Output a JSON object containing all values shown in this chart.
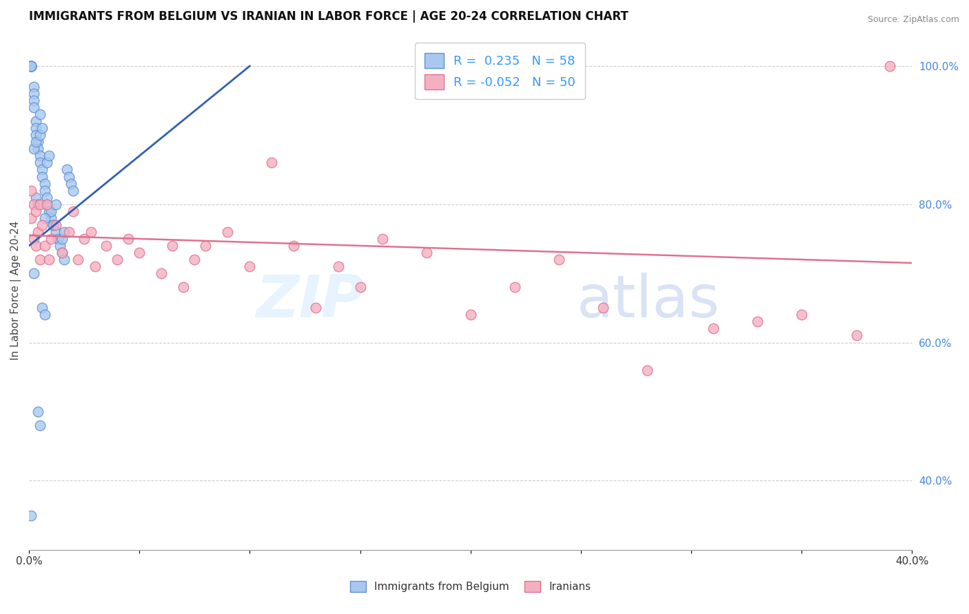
{
  "title": "IMMIGRANTS FROM BELGIUM VS IRANIAN IN LABOR FORCE | AGE 20-24 CORRELATION CHART",
  "source": "Source: ZipAtlas.com",
  "ylabel": "In Labor Force | Age 20-24",
  "xlabel_belgium": "Immigrants from Belgium",
  "xlabel_iranian": "Iranians",
  "xlim": [
    0.0,
    0.4
  ],
  "ylim": [
    0.3,
    1.05
  ],
  "yticks": [
    0.4,
    0.6,
    0.8,
    1.0
  ],
  "ytick_labels": [
    "40.0%",
    "60.0%",
    "80.0%",
    "100.0%"
  ],
  "xticks": [
    0.0,
    0.05,
    0.1,
    0.15,
    0.2,
    0.25,
    0.3,
    0.35,
    0.4
  ],
  "xtick_labels": [
    "",
    "",
    "",
    "",
    "",
    "",
    "",
    "",
    ""
  ],
  "xtick_labels_show": [
    "0.0%",
    "40.0%"
  ],
  "belgium_R": 0.235,
  "belgium_N": 58,
  "iranian_R": -0.052,
  "iranian_N": 50,
  "belgium_color": "#A8C8F0",
  "iranian_color": "#F4B0C0",
  "belgium_edge": "#6090D0",
  "iranian_edge": "#E07090",
  "trend_belgium_color": "#3060B0",
  "trend_iranian_color": "#E07090",
  "belgium_x": [
    0.001,
    0.001,
    0.001,
    0.001,
    0.001,
    0.001,
    0.001,
    0.001,
    0.002,
    0.002,
    0.002,
    0.002,
    0.003,
    0.003,
    0.003,
    0.004,
    0.004,
    0.005,
    0.005,
    0.005,
    0.006,
    0.006,
    0.007,
    0.007,
    0.008,
    0.008,
    0.009,
    0.01,
    0.011,
    0.012,
    0.013,
    0.014,
    0.015,
    0.016,
    0.017,
    0.018,
    0.019,
    0.02,
    0.002,
    0.003,
    0.01,
    0.012,
    0.005,
    0.006,
    0.015,
    0.016,
    0.008,
    0.009,
    0.007,
    0.011,
    0.003,
    0.004,
    0.002,
    0.001,
    0.006,
    0.007,
    0.004,
    0.005
  ],
  "belgium_y": [
    1.0,
    1.0,
    1.0,
    1.0,
    1.0,
    1.0,
    1.0,
    1.0,
    0.97,
    0.96,
    0.95,
    0.94,
    0.92,
    0.91,
    0.9,
    0.89,
    0.88,
    0.93,
    0.87,
    0.86,
    0.85,
    0.84,
    0.83,
    0.82,
    0.81,
    0.8,
    0.79,
    0.78,
    0.77,
    0.76,
    0.75,
    0.74,
    0.73,
    0.72,
    0.85,
    0.84,
    0.83,
    0.82,
    0.88,
    0.89,
    0.79,
    0.8,
    0.9,
    0.91,
    0.75,
    0.76,
    0.86,
    0.87,
    0.78,
    0.77,
    0.81,
    0.8,
    0.7,
    0.35,
    0.65,
    0.64,
    0.5,
    0.48
  ],
  "iran_x": [
    0.001,
    0.001,
    0.002,
    0.002,
    0.003,
    0.003,
    0.004,
    0.005,
    0.005,
    0.006,
    0.007,
    0.008,
    0.009,
    0.01,
    0.012,
    0.015,
    0.018,
    0.02,
    0.022,
    0.025,
    0.028,
    0.03,
    0.035,
    0.04,
    0.045,
    0.05,
    0.06,
    0.065,
    0.07,
    0.075,
    0.08,
    0.09,
    0.1,
    0.11,
    0.12,
    0.13,
    0.14,
    0.15,
    0.16,
    0.18,
    0.2,
    0.22,
    0.24,
    0.26,
    0.28,
    0.31,
    0.33,
    0.35,
    0.375,
    0.39
  ],
  "iran_y": [
    0.78,
    0.82,
    0.8,
    0.75,
    0.79,
    0.74,
    0.76,
    0.8,
    0.72,
    0.77,
    0.74,
    0.8,
    0.72,
    0.75,
    0.77,
    0.73,
    0.76,
    0.79,
    0.72,
    0.75,
    0.76,
    0.71,
    0.74,
    0.72,
    0.75,
    0.73,
    0.7,
    0.74,
    0.68,
    0.72,
    0.74,
    0.76,
    0.71,
    0.86,
    0.74,
    0.65,
    0.71,
    0.68,
    0.75,
    0.73,
    0.64,
    0.68,
    0.72,
    0.65,
    0.56,
    0.62,
    0.63,
    0.64,
    0.61,
    1.0
  ],
  "watermark_zip": "ZIP",
  "watermark_atlas": "atlas",
  "background_color": "#FFFFFF"
}
